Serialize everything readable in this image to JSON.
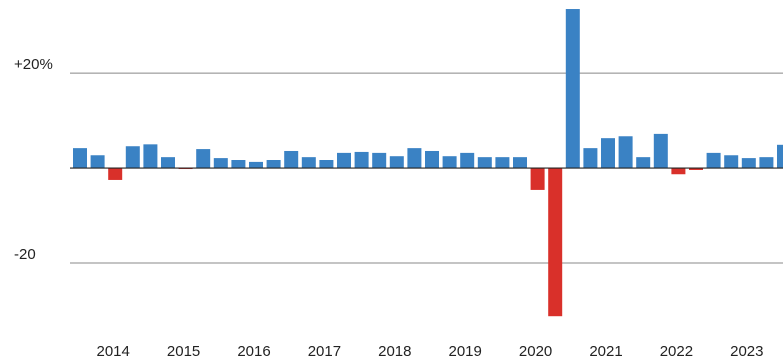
{
  "chart_data": {
    "type": "bar",
    "categories": [
      null,
      null,
      "2014",
      null,
      null,
      null,
      "2015",
      null,
      null,
      null,
      "2016",
      null,
      null,
      null,
      "2017",
      null,
      null,
      null,
      "2018",
      null,
      null,
      null,
      "2019",
      null,
      null,
      null,
      "2020",
      null,
      null,
      null,
      "2021",
      null,
      null,
      null,
      "2022",
      null,
      null,
      null,
      "2023",
      null,
      null
    ],
    "values": [
      4.2,
      2.7,
      -2.5,
      4.6,
      5.0,
      2.3,
      -0.2,
      4.0,
      2.1,
      1.7,
      1.3,
      1.7,
      3.6,
      2.3,
      1.7,
      3.2,
      3.4,
      3.2,
      2.5,
      4.2,
      3.6,
      2.5,
      3.2,
      2.3,
      2.3,
      2.3,
      -4.6,
      -31.2,
      33.5,
      4.2,
      6.3,
      6.7,
      2.3,
      7.2,
      -1.3,
      -0.4,
      3.2,
      2.7,
      2.1,
      2.3,
      4.9
    ],
    "positive_color": "#3a82c4",
    "negative_color": "#d9302a",
    "ylim": [
      -34,
      35.4
    ],
    "yticks": [
      {
        "value": 20,
        "label": "+20%"
      },
      -20
    ],
    "grid": true
  }
}
